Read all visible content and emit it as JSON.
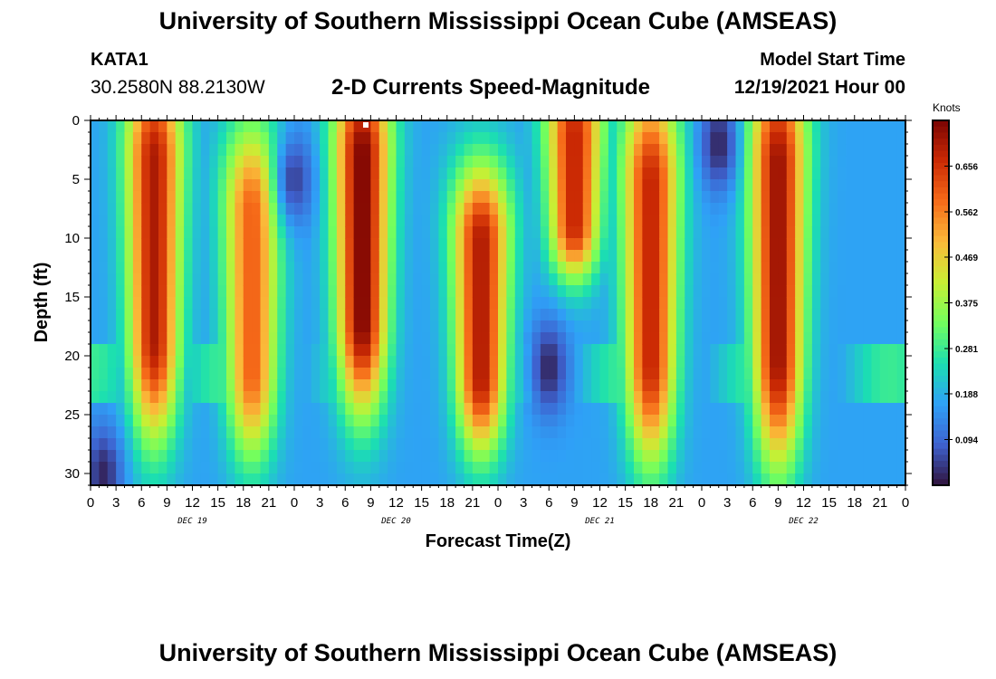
{
  "header": {
    "title": "University of Southern Mississippi Ocean Cube (AMSEAS)",
    "station": "KATA1",
    "coords": "30.2580N  88.2130W",
    "subtitle": "2-D Currents Speed-Magnitude",
    "start_label": "Model Start Time",
    "start_value": "12/19/2021 Hour 00"
  },
  "footer": {
    "title": "University of Southern Mississippi Ocean Cube (AMSEAS)"
  },
  "chart_data": {
    "type": "heatmap",
    "title": "2-D Currents Speed-Magnitude",
    "xlabel": "Forecast Time(Z)",
    "ylabel": "Depth (ft)",
    "x_range_hours": [
      0,
      96
    ],
    "y_range_ft": [
      0,
      31
    ],
    "y_inverted": true,
    "x_ticks": [
      "0",
      "3",
      "6",
      "9",
      "12",
      "15",
      "18",
      "21",
      "0",
      "3",
      "6",
      "9",
      "12",
      "15",
      "18",
      "21",
      "0",
      "3",
      "6",
      "9",
      "12",
      "15",
      "18",
      "21",
      "0",
      "3",
      "6",
      "9",
      "12",
      "15",
      "18",
      "21",
      "0"
    ],
    "day_labels": [
      "DEC 19",
      "DEC 20",
      "DEC 21",
      "DEC 22"
    ],
    "y_ticks": [
      "0",
      "5",
      "10",
      "15",
      "20",
      "25",
      "30"
    ],
    "colorbar": {
      "label": "Knots",
      "range": [
        0.0,
        0.75
      ],
      "ticks": [
        "0.656",
        "0.562",
        "0.469",
        "0.375",
        "0.281",
        "0.188",
        "0.094"
      ]
    },
    "colormap": [
      "#30123b",
      "#3e62cf",
      "#2fa0f7",
      "#1bdfb1",
      "#72fe5e",
      "#c8ef34",
      "#faba39",
      "#f66b19",
      "#cb2a04",
      "#7a0403"
    ],
    "cell_hours": 1,
    "cell_depth_ft": 1,
    "speed_peaks_knots": [
      {
        "hour": 7.5,
        "depth_top": 0,
        "depth_bottom": 22,
        "speed": 0.7
      },
      {
        "hour": 19,
        "depth_top": 5,
        "depth_bottom": 24,
        "speed": 0.6
      },
      {
        "hour": 32,
        "depth_top": 0,
        "depth_bottom": 20,
        "speed": 0.75
      },
      {
        "hour": 46,
        "depth_top": 8,
        "depth_bottom": 24,
        "speed": 0.7
      },
      {
        "hour": 57,
        "depth_top": 0,
        "depth_bottom": 10,
        "speed": 0.68
      },
      {
        "hour": 66,
        "depth_top": 2,
        "depth_bottom": 24,
        "speed": 0.68
      },
      {
        "hour": 81,
        "depth_top": 0,
        "depth_bottom": 24,
        "speed": 0.72
      }
    ],
    "speed_minima_knots": [
      {
        "hour": 24,
        "depth": 5,
        "speed": 0.05
      },
      {
        "hour": 54,
        "depth": 21,
        "speed": 0.02
      },
      {
        "hour": 74,
        "depth": 2,
        "speed": 0.02
      },
      {
        "hour": 1.5,
        "depth": 30,
        "speed": 0.02
      }
    ]
  }
}
